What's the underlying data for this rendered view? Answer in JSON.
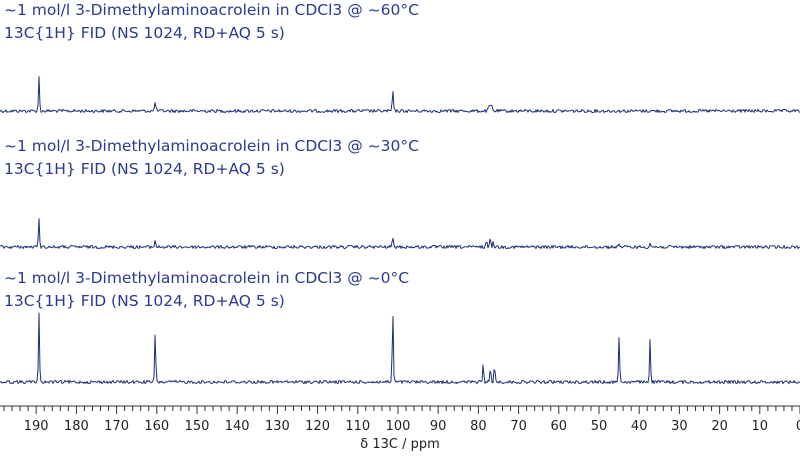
{
  "chart_data": {
    "type": "line",
    "xlabel": "δ 13C / ppm",
    "x_axis_reversed": true,
    "xlim": [
      199,
      0
    ],
    "grid": false,
    "ticks": [
      190,
      180,
      170,
      160,
      150,
      140,
      130,
      120,
      110,
      100,
      90,
      80,
      70,
      60,
      50,
      40,
      30,
      20,
      10,
      0
    ],
    "tick_labels": [
      "190",
      "180",
      "170",
      "160",
      "150",
      "140",
      "130",
      "120",
      "110",
      "100",
      "90",
      "80",
      "70",
      "60",
      "50",
      "40",
      "30",
      "20",
      "10",
      "0"
    ],
    "colors": {
      "spectrum": "#1d2d7a",
      "label": "#2b3a8f",
      "axis": "#333333"
    },
    "spectra": [
      {
        "title_line1": "~1 mol/l 3-Dimethylaminoacrolein in CDCl3 @ ~60°C",
        "title_line2": "13C{1H} FID (NS 1024, RD+AQ 5 s)",
        "peaks": [
          {
            "ppm": 189.3,
            "intensity": 0.43
          },
          {
            "ppm": 160.4,
            "intensity": 0.13
          },
          {
            "ppm": 101.3,
            "intensity": 0.27
          },
          {
            "ppm": 77.4,
            "intensity": 0.06
          },
          {
            "ppm": 77.0,
            "intensity": 0.08
          },
          {
            "ppm": 76.6,
            "intensity": 0.06
          }
        ]
      },
      {
        "title_line1": "~1 mol/l 3-Dimethylaminoacrolein in CDCl3 @ ~30°C",
        "title_line2": "13C{1H} FID (NS 1024, RD+AQ 5 s)",
        "peaks": [
          {
            "ppm": 189.3,
            "intensity": 0.33
          },
          {
            "ppm": 160.4,
            "intensity": 0.08
          },
          {
            "ppm": 101.3,
            "intensity": 0.12
          },
          {
            "ppm": 78.0,
            "intensity": 0.08
          },
          {
            "ppm": 77.0,
            "intensity": 0.1
          },
          {
            "ppm": 76.3,
            "intensity": 0.07
          },
          {
            "ppm": 45.0,
            "intensity": 0.05
          },
          {
            "ppm": 37.3,
            "intensity": 0.05
          }
        ]
      },
      {
        "title_line1": "~1 mol/l 3-Dimethylaminoacrolein in CDCl3 @ ~0°C",
        "title_line2": "13C{1H} FID (NS 1024, RD+AQ 5 s)",
        "peaks": [
          {
            "ppm": 189.3,
            "intensity": 0.9
          },
          {
            "ppm": 160.4,
            "intensity": 0.65
          },
          {
            "ppm": 101.3,
            "intensity": 0.95
          },
          {
            "ppm": 78.8,
            "intensity": 0.23
          },
          {
            "ppm": 77.0,
            "intensity": 0.2
          },
          {
            "ppm": 76.0,
            "intensity": 0.24
          },
          {
            "ppm": 45.0,
            "intensity": 0.62
          },
          {
            "ppm": 37.3,
            "intensity": 0.58
          }
        ]
      }
    ]
  }
}
